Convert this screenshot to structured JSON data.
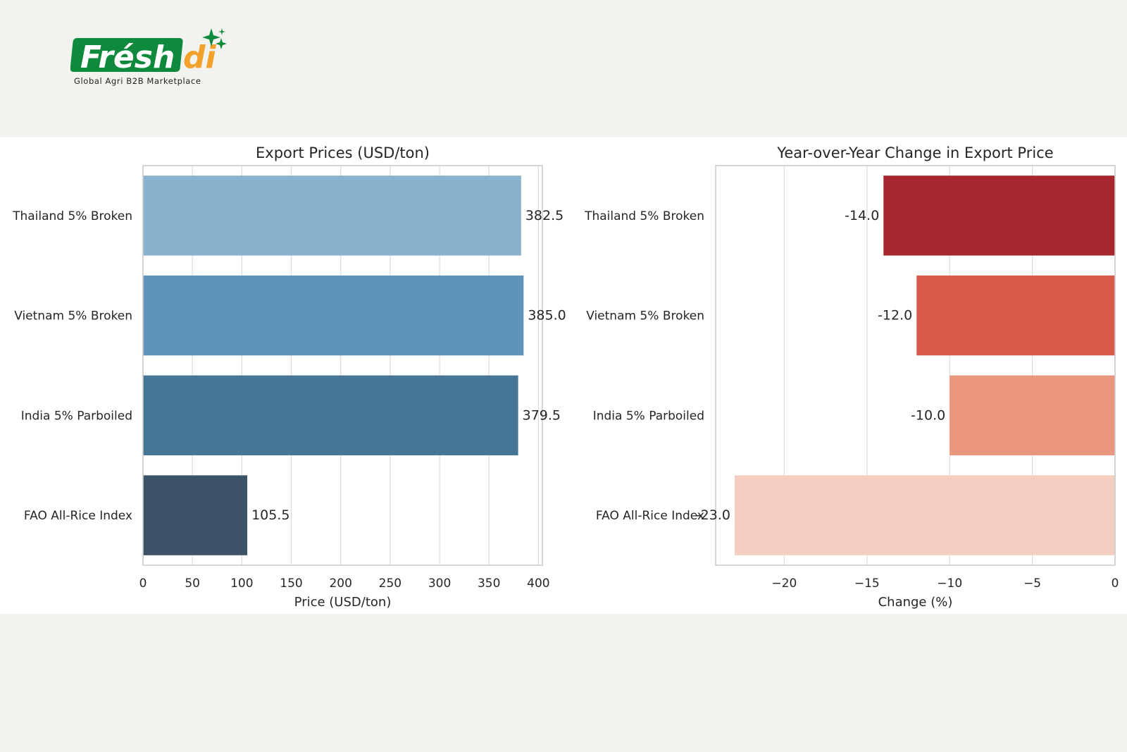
{
  "brand": {
    "name_part1": "Frésh",
    "name_part2": "di",
    "tagline": "Global Agri B2B Marketplace",
    "green": "#0f8a3c",
    "orange": "#f2a12b"
  },
  "chart_data": [
    {
      "type": "bar",
      "orientation": "horizontal",
      "title": "Export Prices (USD/ton)",
      "xlabel": "Price (USD/ton)",
      "ylabel": "",
      "categories": [
        "Thailand 5% Broken",
        "Vietnam 5% Broken",
        "India 5% Parboiled",
        "FAO All-Rice Index"
      ],
      "values": [
        382.5,
        385.0,
        379.5,
        105.5
      ],
      "value_labels": [
        "382.5",
        "385.0",
        "379.5",
        "105.5"
      ],
      "xlim": [
        0,
        404
      ],
      "xticks": [
        0,
        50,
        100,
        150,
        200,
        250,
        300,
        350,
        400
      ],
      "xtick_labels": [
        "0",
        "50",
        "100",
        "150",
        "200",
        "250",
        "300",
        "350",
        "400"
      ],
      "colors": [
        "#8ab1cd",
        "#5e94b9",
        "#457696",
        "#3c5266"
      ],
      "grid": "vertical"
    },
    {
      "type": "bar",
      "orientation": "horizontal",
      "title": "Year-over-Year Change in Export Price",
      "xlabel": "Change (%)",
      "ylabel": "",
      "categories": [
        "Thailand 5% Broken",
        "Vietnam 5% Broken",
        "India 5% Parboiled",
        "FAO All-Rice Index"
      ],
      "values": [
        -14.0,
        -12.0,
        -10.0,
        -23.0
      ],
      "value_labels": [
        "-14.0",
        "-12.0",
        "-10.0",
        "-23.0"
      ],
      "xlim": [
        -24.15,
        0
      ],
      "xticks": [
        -20,
        -15,
        -10,
        -5,
        0
      ],
      "xtick_labels": [
        "−20",
        "−15",
        "−10",
        "−5",
        "0"
      ],
      "colors": [
        "#a6282e",
        "#d9594a",
        "#ea967c",
        "#f4cfc1"
      ],
      "grid": "vertical"
    }
  ]
}
